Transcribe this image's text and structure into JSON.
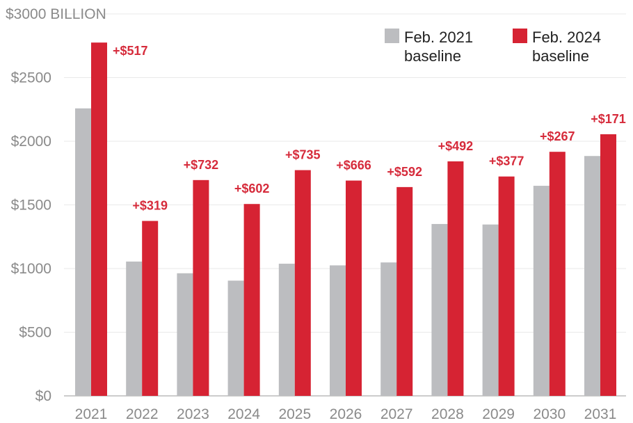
{
  "chart_data": {
    "type": "bar",
    "title": "",
    "xlabel": "",
    "ylabel": "",
    "y_top_label": "$3000 BILLION",
    "y_tick_labels": [
      "$0",
      "$500",
      "$1000",
      "$1500",
      "$2000",
      "$2500"
    ],
    "y_ticks": [
      0,
      500,
      1000,
      1500,
      2000,
      2500,
      3000
    ],
    "ylim": [
      0,
      3000
    ],
    "grid": true,
    "legend_position": "top-right",
    "categories": [
      "2021",
      "2022",
      "2023",
      "2024",
      "2025",
      "2026",
      "2027",
      "2028",
      "2029",
      "2030",
      "2031"
    ],
    "series": [
      {
        "name": "Feb. 2021 baseline",
        "legend_lines": [
          "Feb. 2021",
          "baseline"
        ],
        "color": "#bcbdc0",
        "values": [
          2258,
          1055,
          963,
          905,
          1038,
          1025,
          1048,
          1350,
          1346,
          1650,
          1884
        ]
      },
      {
        "name": "Feb. 2024 baseline",
        "legend_lines": [
          "Feb. 2024",
          "baseline"
        ],
        "color": "#d62333",
        "values": [
          2775,
          1374,
          1695,
          1507,
          1773,
          1691,
          1640,
          1842,
          1723,
          1917,
          2055
        ]
      }
    ],
    "annotations": [
      "+$517",
      "+$319",
      "+$732",
      "+$602",
      "+$735",
      "+$666",
      "+$592",
      "+$492",
      "+$377",
      "+$267",
      "+$171"
    ]
  }
}
